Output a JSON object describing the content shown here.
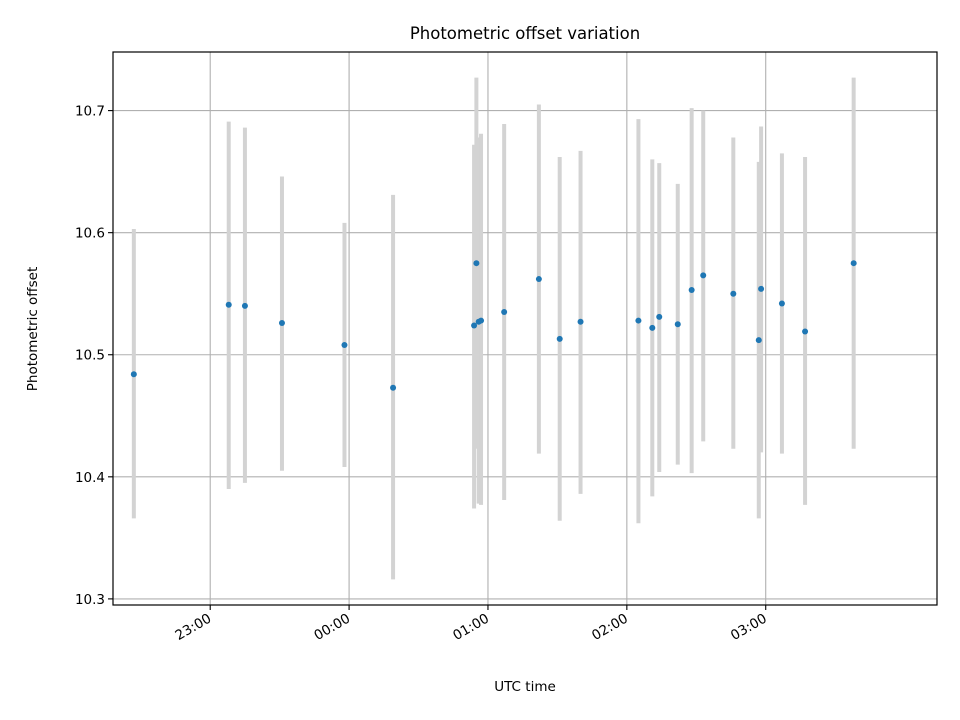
{
  "chart_data": {
    "type": "scatter",
    "title": "Photometric offset variation",
    "xlabel": "UTC time",
    "ylabel": "Photometric offset",
    "x_tick_labels": [
      "23:00",
      "00:00",
      "01:00",
      "02:00",
      "03:00"
    ],
    "y_tick_labels": [
      "10.3",
      "10.4",
      "10.5",
      "10.6",
      "10.7"
    ],
    "y_ticks": [
      10.3,
      10.4,
      10.5,
      10.6,
      10.7
    ],
    "ylim": [
      10.295,
      10.748
    ],
    "xlim": [
      "22:18",
      "04:14"
    ],
    "grid": true,
    "colors": {
      "point": "#1f77b4",
      "errorbar": "#d3d3d3",
      "grid": "#b0b0b0"
    },
    "points": [
      {
        "x": "22:27",
        "y": 10.484,
        "y_low": 10.366,
        "y_high": 10.603
      },
      {
        "x": "23:08",
        "y": 10.541,
        "y_low": 10.39,
        "y_high": 10.691
      },
      {
        "x": "23:15",
        "y": 10.54,
        "y_low": 10.395,
        "y_high": 10.686
      },
      {
        "x": "23:31",
        "y": 10.526,
        "y_low": 10.405,
        "y_high": 10.646
      },
      {
        "x": "23:58",
        "y": 10.508,
        "y_low": 10.408,
        "y_high": 10.608
      },
      {
        "x": "00:19",
        "y": 10.473,
        "y_low": 10.316,
        "y_high": 10.631
      },
      {
        "x": "00:54",
        "y": 10.524,
        "y_low": 10.374,
        "y_high": 10.672
      },
      {
        "x": "00:55",
        "y": 10.575,
        "y_low": 10.423,
        "y_high": 10.727
      },
      {
        "x": "00:56",
        "y": 10.527,
        "y_low": 10.378,
        "y_high": 10.678
      },
      {
        "x": "00:57",
        "y": 10.528,
        "y_low": 10.377,
        "y_high": 10.681
      },
      {
        "x": "01:07",
        "y": 10.535,
        "y_low": 10.381,
        "y_high": 10.689
      },
      {
        "x": "01:22",
        "y": 10.562,
        "y_low": 10.419,
        "y_high": 10.705
      },
      {
        "x": "01:31",
        "y": 10.513,
        "y_low": 10.364,
        "y_high": 10.662
      },
      {
        "x": "01:40",
        "y": 10.527,
        "y_low": 10.386,
        "y_high": 10.667
      },
      {
        "x": "02:05",
        "y": 10.528,
        "y_low": 10.362,
        "y_high": 10.693
      },
      {
        "x": "02:11",
        "y": 10.522,
        "y_low": 10.384,
        "y_high": 10.66
      },
      {
        "x": "02:14",
        "y": 10.531,
        "y_low": 10.404,
        "y_high": 10.657
      },
      {
        "x": "02:22",
        "y": 10.525,
        "y_low": 10.41,
        "y_high": 10.64
      },
      {
        "x": "02:28",
        "y": 10.553,
        "y_low": 10.403,
        "y_high": 10.702
      },
      {
        "x": "02:33",
        "y": 10.565,
        "y_low": 10.429,
        "y_high": 10.7
      },
      {
        "x": "02:46",
        "y": 10.55,
        "y_low": 10.423,
        "y_high": 10.678
      },
      {
        "x": "02:57",
        "y": 10.512,
        "y_low": 10.366,
        "y_high": 10.658
      },
      {
        "x": "02:58",
        "y": 10.554,
        "y_low": 10.42,
        "y_high": 10.687
      },
      {
        "x": "03:07",
        "y": 10.542,
        "y_low": 10.419,
        "y_high": 10.665
      },
      {
        "x": "03:17",
        "y": 10.519,
        "y_low": 10.377,
        "y_high": 10.662
      },
      {
        "x": "03:38",
        "y": 10.575,
        "y_low": 10.423,
        "y_high": 10.727
      }
    ]
  }
}
